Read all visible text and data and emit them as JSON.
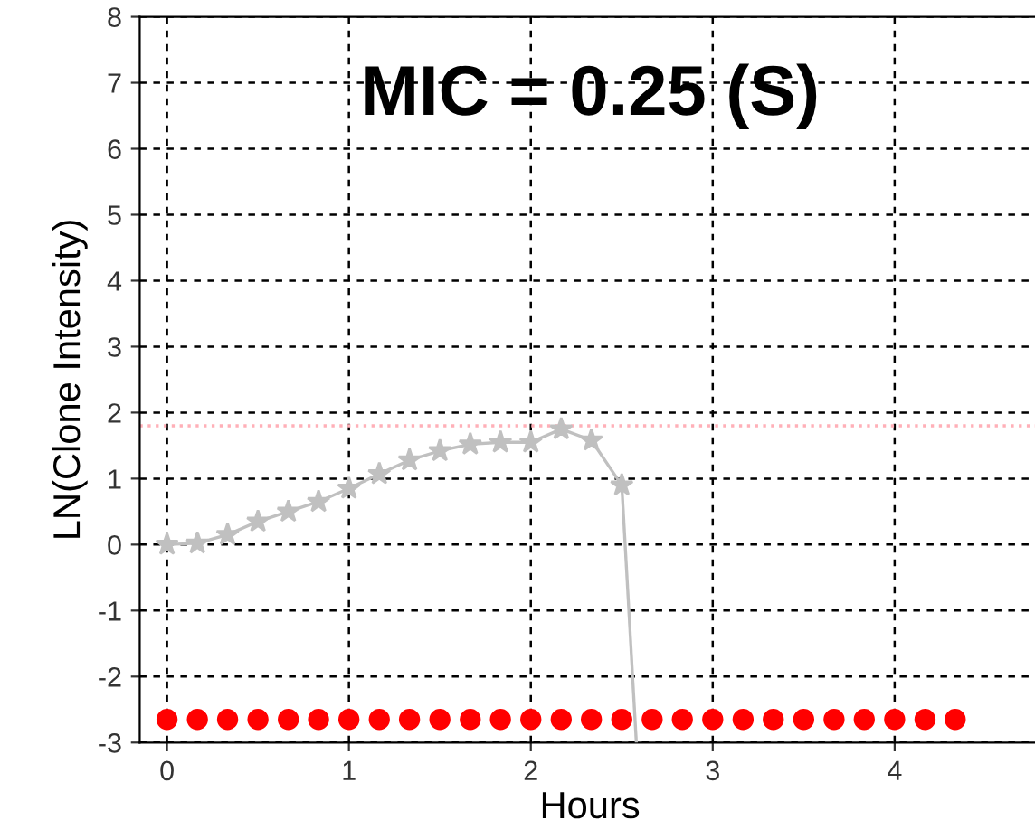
{
  "chart_data": {
    "type": "line",
    "xlabel": "Hours",
    "ylabel": "LN(Clone Intensity)",
    "annotations": [
      "MIC = 0.25 (S)"
    ],
    "xlim": [
      -0.15,
      4.8
    ],
    "ylim": [
      -3,
      8
    ],
    "xticks": [
      0,
      1,
      2,
      3,
      4
    ],
    "yticks": [
      -3,
      -2,
      -1,
      0,
      1,
      2,
      3,
      4,
      5,
      6,
      7,
      8
    ],
    "grid": true,
    "ref_lines": [
      {
        "axis": "y",
        "value": 1.8,
        "label": null,
        "color": "#ffb0b8",
        "line_style": "dotted"
      }
    ],
    "series": [
      {
        "type": "line",
        "color": "#c0c0c0",
        "marker": "star",
        "line_style": "solid",
        "x": [
          0,
          0.167,
          0.333,
          0.5,
          0.667,
          0.833,
          1,
          1.167,
          1.333,
          1.5,
          1.667,
          1.833,
          2,
          2.167,
          2.333,
          2.5
        ],
        "values": [
          0,
          0.02,
          0.15,
          0.35,
          0.5,
          0.65,
          0.85,
          1.07,
          1.28,
          1.42,
          1.52,
          1.55,
          1.55,
          1.75,
          1.58,
          0.9
        ]
      },
      {
        "type": "line",
        "color": "#c0c0c0",
        "marker": "none",
        "line_style": "solid",
        "x": [
          2.5,
          2.58
        ],
        "values": [
          0.9,
          -3
        ]
      },
      {
        "type": "scatter",
        "color": "#ff0000",
        "marker": "circle",
        "x": [
          0,
          0.167,
          0.333,
          0.5,
          0.667,
          0.833,
          1,
          1.167,
          1.333,
          1.5,
          1.667,
          1.833,
          2,
          2.167,
          2.333,
          2.5,
          2.667,
          2.833,
          3,
          3.167,
          3.333,
          3.5,
          3.667,
          3.833,
          4,
          4.167,
          4.333
        ],
        "values": [
          -2.65,
          -2.65,
          -2.65,
          -2.65,
          -2.65,
          -2.65,
          -2.65,
          -2.65,
          -2.65,
          -2.65,
          -2.65,
          -2.65,
          -2.65,
          -2.65,
          -2.65,
          -2.65,
          -2.65,
          -2.65,
          -2.65,
          -2.65,
          -2.65,
          -2.65,
          -2.65,
          -2.65,
          -2.65,
          -2.65,
          -2.65
        ]
      }
    ]
  }
}
